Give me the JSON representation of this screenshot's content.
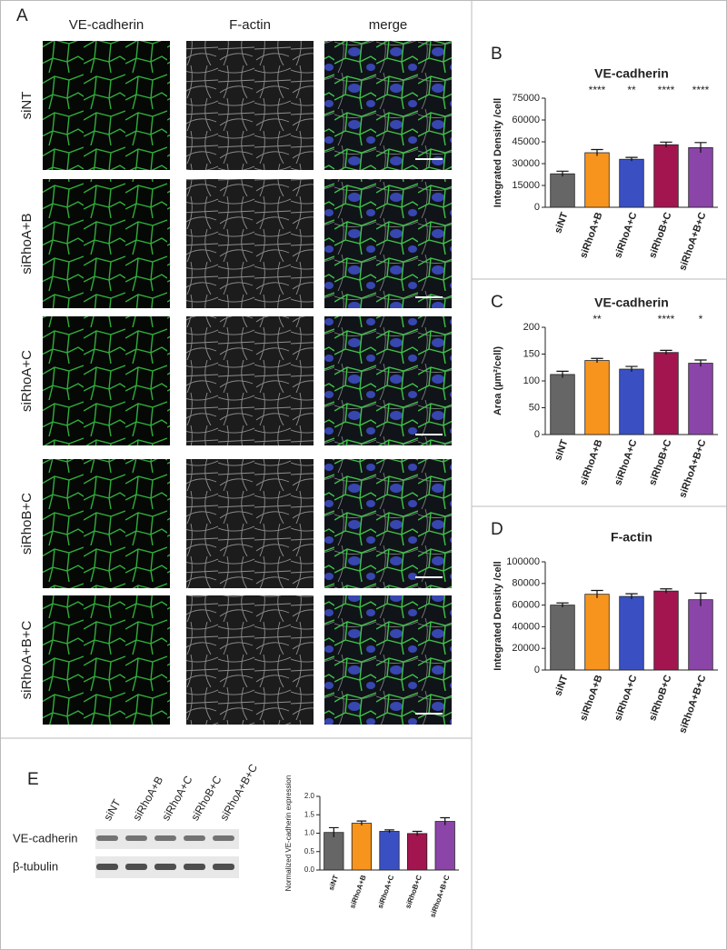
{
  "figure": {
    "panel_letters": [
      "A",
      "B",
      "C",
      "D",
      "E"
    ],
    "columns": [
      "VE-cadherin",
      "F-actin",
      "merge"
    ],
    "rows": [
      "siNT",
      "siRhoA+B",
      "siRhoA+C",
      "siRhoB+C",
      "siRhoA+B+C"
    ],
    "blot": {
      "lanes": [
        "siNT",
        "siRhoA+B",
        "siRhoA+C",
        "siRhoB+C",
        "siRhoA+B+C"
      ],
      "proteins": [
        "VE-cadherin",
        "β-tubulin"
      ]
    }
  },
  "chart_data": [
    {
      "type": "bar",
      "title": "VE-cadherin",
      "y_label": "Integrated Density /cell",
      "categories": [
        "siNT",
        "siRhoA+B",
        "siRhoA+C",
        "siRhoB+C",
        "siRhoA+B+C"
      ],
      "values": [
        23000,
        37500,
        33000,
        43000,
        41000
      ],
      "errors": [
        1800,
        2200,
        1300,
        1800,
        3500
      ],
      "colors": [
        "#666666",
        "#f7941d",
        "#3a50c2",
        "#a3154f",
        "#8b45a8"
      ],
      "annotations": [
        null,
        "****",
        "**",
        "****",
        "****"
      ],
      "ylim": [
        0,
        75000
      ],
      "yticks": [
        0,
        15000,
        30000,
        45000,
        60000,
        75000
      ]
    },
    {
      "type": "bar",
      "title": "VE-cadherin",
      "y_label": "Area (µm²/cell)",
      "categories": [
        "siNT",
        "siRhoA+B",
        "siRhoA+C",
        "siRhoB+C",
        "siRhoA+B+C"
      ],
      "values": [
        112,
        138,
        122,
        153,
        133
      ],
      "errors": [
        6,
        4,
        5,
        4,
        6
      ],
      "colors": [
        "#666666",
        "#f7941d",
        "#3a50c2",
        "#a3154f",
        "#8b45a8"
      ],
      "annotations": [
        null,
        "**",
        null,
        "****",
        "*"
      ],
      "ylim": [
        0,
        200
      ],
      "yticks": [
        0,
        50,
        100,
        150,
        200
      ]
    },
    {
      "type": "bar",
      "title": "F-actin",
      "y_label": "Integrated Density /cell",
      "categories": [
        "siNT",
        "siRhoA+B",
        "siRhoA+C",
        "siRhoB+C",
        "siRhoA+B+C"
      ],
      "values": [
        60000,
        70000,
        68000,
        73000,
        65000
      ],
      "errors": [
        2000,
        3500,
        2500,
        2000,
        6000
      ],
      "colors": [
        "#666666",
        "#f7941d",
        "#3a50c2",
        "#a3154f",
        "#8b45a8"
      ],
      "ylim": [
        0,
        100000
      ],
      "yticks": [
        0,
        20000,
        40000,
        60000,
        80000,
        100000
      ]
    },
    {
      "type": "bar",
      "y_label": "Normalized VE-cadherin expression",
      "categories": [
        "siNT",
        "siRhoA+B",
        "siRhoA+C",
        "siRhoB+C",
        "siRhoA+B+C"
      ],
      "values": [
        1.02,
        1.27,
        1.05,
        0.99,
        1.32
      ],
      "errors": [
        0.13,
        0.06,
        0.04,
        0.06,
        0.1
      ],
      "colors": [
        "#666666",
        "#f7941d",
        "#3a50c2",
        "#a3154f",
        "#8b45a8"
      ],
      "ylim": [
        0,
        2
      ],
      "yticks": [
        {
          "value": 0,
          "label": "0.0"
        },
        0.5,
        {
          "value": 1,
          "label": "1.0"
        },
        1.5,
        {
          "value": 2,
          "label": "2.0"
        }
      ]
    }
  ]
}
